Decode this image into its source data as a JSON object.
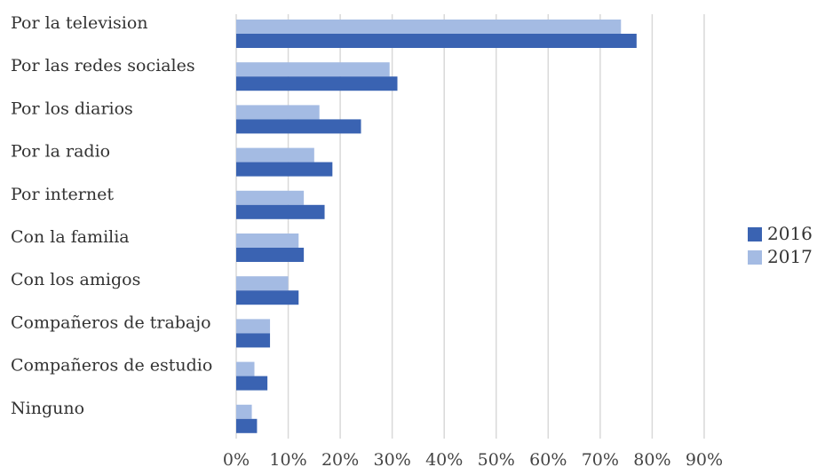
{
  "colors": {
    "series_2016": "#3a63b2",
    "series_2017": "#a4bbe3",
    "gridline": "#d9d9d9"
  },
  "chart_data": {
    "type": "bar",
    "orientation": "horizontal",
    "title": "",
    "xlabel": "",
    "ylabel": "",
    "categories": [
      "Por la television",
      "Por las redes sociales",
      "Por los diarios",
      "Por la radio",
      "Por internet",
      "Con la familia",
      "Con los amigos",
      "Compañeros de trabajo",
      "Compañeros de estudio",
      "Ninguno"
    ],
    "series": [
      {
        "name": "2016",
        "values": [
          77,
          31,
          24,
          18.5,
          17,
          13,
          12,
          6.5,
          6,
          4
        ]
      },
      {
        "name": "2017",
        "values": [
          74,
          29.5,
          16,
          15,
          13,
          12,
          10,
          6.5,
          3.5,
          3
        ]
      }
    ],
    "xlim": [
      0,
      90
    ],
    "xticks": [
      0,
      10,
      20,
      30,
      40,
      50,
      60,
      70,
      80,
      90
    ],
    "xtick_labels": [
      "0%",
      "10%",
      "20%",
      "30%",
      "40%",
      "50%",
      "60%",
      "70%",
      "80%",
      "90%"
    ],
    "grid": true,
    "legend_position": "right"
  }
}
